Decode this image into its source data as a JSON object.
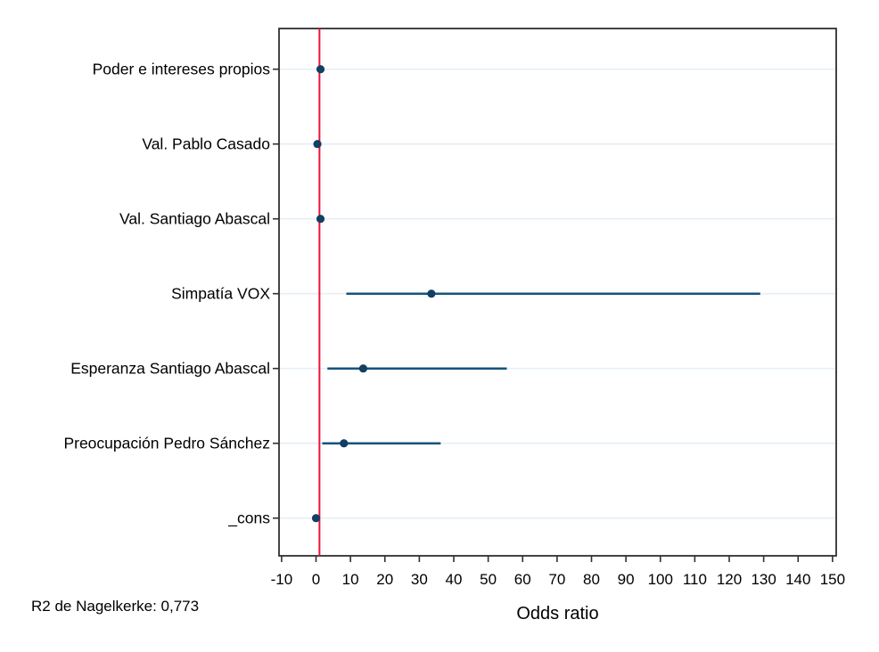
{
  "figure": {
    "note_r2": "R2 de Nagelkerke: 0,773",
    "xlabel": "Odds ratio"
  },
  "style": {
    "background": "#ffffff",
    "border_color": "#303030",
    "gridline_color": "#e4eff6",
    "refline_color": "#ed1239",
    "ci_line_color": "#14537d",
    "marker_color": "#123f63",
    "text_color": "#000000"
  },
  "chart_data": {
    "type": "scatter",
    "subtype": "horizontal-dot-ci-forest",
    "title": "",
    "xlabel": "Odds ratio",
    "ylabel": "",
    "note": "R2 de Nagelkerke: 0,773",
    "xlim": [
      -10,
      150
    ],
    "x_ticks": [
      -10,
      0,
      10,
      20,
      30,
      40,
      50,
      60,
      70,
      80,
      90,
      100,
      110,
      120,
      130,
      140,
      150
    ],
    "reference_line_x": 1,
    "grid": "horizontal-rows-only",
    "legend": "none",
    "categories": [
      "Poder e intereses propios",
      "Val. Pablo Casado",
      "Val. Santiago Abascal",
      "Simpatía VOX",
      "Esperanza Santiago Abascal",
      "Preocupación Pedro Sánchez",
      "_cons"
    ],
    "series": [
      {
        "name": "Odds ratio",
        "points": [
          {
            "label": "Poder e intereses propios",
            "or": 1.3,
            "ci_low": null,
            "ci_high": null
          },
          {
            "label": "Val. Pablo Casado",
            "or": 0.4,
            "ci_low": null,
            "ci_high": null
          },
          {
            "label": "Val. Santiago Abascal",
            "or": 1.3,
            "ci_low": null,
            "ci_high": null
          },
          {
            "label": "Simpatía VOX",
            "or": 33.5,
            "ci_low": 8.8,
            "ci_high": 129
          },
          {
            "label": "Esperanza Santiago Abascal",
            "or": 13.7,
            "ci_low": 3.3,
            "ci_high": 55.4
          },
          {
            "label": "Preocupación Pedro Sánchez",
            "or": 8.1,
            "ci_low": 1.8,
            "ci_high": 36.2
          },
          {
            "label": "_cons",
            "or": 0.0,
            "ci_low": null,
            "ci_high": null
          }
        ]
      }
    ]
  }
}
